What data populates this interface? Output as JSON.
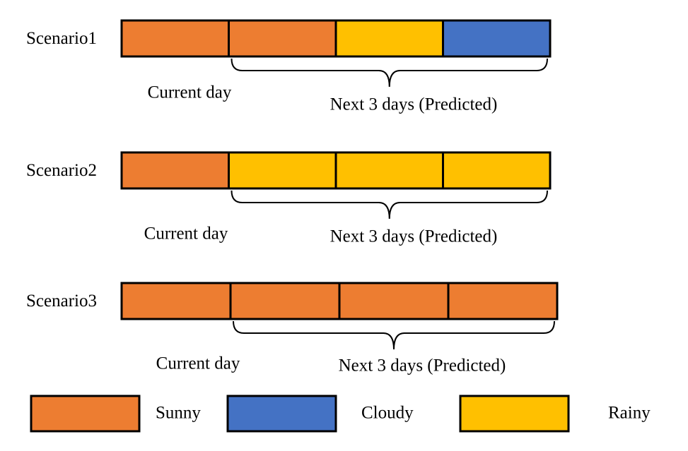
{
  "scenarios": [
    {
      "label": "Scenario1",
      "cells": [
        "#ed7d31",
        "#ed7d31",
        "#ffc000",
        "#4472c4"
      ],
      "current": "Current day",
      "next": "Next 3 days (Predicted)"
    },
    {
      "label": "Scenario2",
      "cells": [
        "#ed7d31",
        "#ffc000",
        "#ffc000",
        "#ffc000"
      ],
      "current": "Current day",
      "next": "Next 3 days (Predicted)"
    },
    {
      "label": "Scenario3",
      "cells": [
        "#ed7d31",
        "#ed7d31",
        "#ed7d31",
        "#ed7d31"
      ],
      "current": "Current day",
      "next": "Next 3 days (Predicted)"
    }
  ],
  "legend": [
    {
      "name": "Sunny",
      "color": "#ed7d31"
    },
    {
      "name": "Cloudy",
      "color": "#4472c4"
    },
    {
      "name": "Rainy",
      "color": "#ffc000"
    }
  ]
}
